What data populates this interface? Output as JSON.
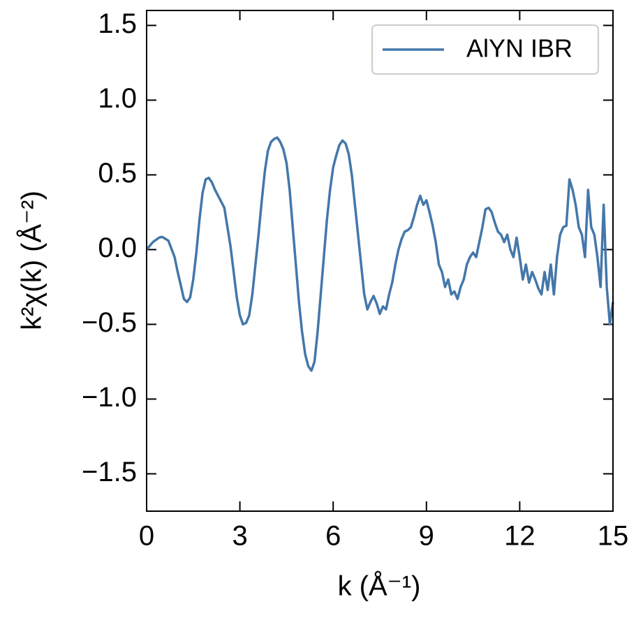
{
  "chart_data": {
    "type": "line",
    "xlabel": "k (Å⁻¹)",
    "ylabel": "k²χ(k) (Å⁻²)",
    "x": [
      0,
      0.2,
      0.4,
      0.5,
      0.7,
      0.9,
      1.0,
      1.2,
      1.3,
      1.4,
      1.5,
      1.6,
      1.7,
      1.8,
      1.9,
      2.0,
      2.1,
      2.2,
      2.4,
      2.5,
      2.6,
      2.7,
      2.8,
      2.9,
      3.0,
      3.1,
      3.2,
      3.3,
      3.4,
      3.5,
      3.6,
      3.7,
      3.8,
      3.9,
      4.0,
      4.1,
      4.2,
      4.3,
      4.4,
      4.5,
      4.6,
      4.7,
      4.8,
      4.9,
      5.0,
      5.1,
      5.2,
      5.3,
      5.4,
      5.5,
      5.6,
      5.7,
      5.8,
      5.9,
      6.0,
      6.1,
      6.2,
      6.3,
      6.4,
      6.5,
      6.6,
      6.7,
      6.8,
      6.9,
      7.0,
      7.1,
      7.2,
      7.3,
      7.4,
      7.5,
      7.6,
      7.7,
      7.8,
      7.9,
      8.0,
      8.1,
      8.2,
      8.3,
      8.4,
      8.5,
      8.6,
      8.7,
      8.8,
      8.9,
      9.0,
      9.1,
      9.2,
      9.3,
      9.4,
      9.5,
      9.6,
      9.7,
      9.8,
      9.9,
      10.0,
      10.1,
      10.2,
      10.3,
      10.4,
      10.5,
      10.6,
      10.7,
      10.8,
      10.9,
      11.0,
      11.1,
      11.2,
      11.3,
      11.4,
      11.5,
      11.6,
      11.7,
      11.8,
      11.9,
      12.0,
      12.1,
      12.2,
      12.3,
      12.4,
      12.5,
      12.6,
      12.7,
      12.8,
      12.9,
      13.0,
      13.1,
      13.2,
      13.3,
      13.4,
      13.5,
      13.6,
      13.7,
      13.8,
      13.9,
      14.0,
      14.1,
      14.2,
      14.3,
      14.4,
      14.5,
      14.6,
      14.7,
      14.8,
      14.9,
      15.0
    ],
    "series": [
      {
        "name": "AlYN IBR",
        "color": "#4477aa",
        "values": [
          0,
          0.05,
          0.08,
          0.085,
          0.06,
          -0.05,
          -0.15,
          -0.33,
          -0.35,
          -0.32,
          -0.2,
          -0.02,
          0.2,
          0.38,
          0.47,
          0.48,
          0.45,
          0.4,
          0.32,
          0.28,
          0.15,
          0.02,
          -0.15,
          -0.32,
          -0.44,
          -0.5,
          -0.49,
          -0.44,
          -0.3,
          -0.1,
          0.1,
          0.32,
          0.52,
          0.66,
          0.72,
          0.74,
          0.75,
          0.72,
          0.67,
          0.58,
          0.4,
          0.15,
          -0.1,
          -0.35,
          -0.55,
          -0.7,
          -0.78,
          -0.81,
          -0.75,
          -0.55,
          -0.3,
          -0.05,
          0.2,
          0.4,
          0.55,
          0.63,
          0.7,
          0.73,
          0.71,
          0.64,
          0.5,
          0.3,
          0.1,
          -0.1,
          -0.3,
          -0.4,
          -0.35,
          -0.31,
          -0.36,
          -0.43,
          -0.38,
          -0.4,
          -0.3,
          -0.22,
          -0.1,
          0.0,
          0.07,
          0.12,
          0.13,
          0.15,
          0.22,
          0.3,
          0.36,
          0.3,
          0.33,
          0.25,
          0.16,
          0.05,
          -0.1,
          -0.15,
          -0.25,
          -0.2,
          -0.3,
          -0.28,
          -0.33,
          -0.25,
          -0.2,
          -0.1,
          -0.05,
          -0.02,
          -0.05,
          0.05,
          0.15,
          0.27,
          0.28,
          0.25,
          0.18,
          0.12,
          0.1,
          0.05,
          0.1,
          0.0,
          -0.05,
          0.08,
          -0.05,
          -0.2,
          -0.1,
          -0.22,
          -0.15,
          -0.2,
          -0.26,
          -0.3,
          -0.15,
          -0.27,
          -0.1,
          -0.3,
          -0.05,
          0.1,
          0.15,
          0.16,
          0.47,
          0.4,
          0.3,
          0.15,
          0.1,
          -0.05,
          0.4,
          0.15,
          0.1,
          -0.05,
          -0.25,
          0.3,
          -0.25,
          -0.5,
          -0.35
        ]
      }
    ],
    "xlim": [
      0,
      15
    ],
    "xticks": [
      0,
      3,
      6,
      9,
      12,
      15
    ],
    "ylim": [
      -1.75,
      1.6
    ],
    "yticks": [
      {
        "value": -1.5,
        "label": "−1.5"
      },
      {
        "value": -1.0,
        "label": "−1.0"
      },
      {
        "value": -0.5,
        "label": "−0.5"
      },
      {
        "value": 0,
        "label": "0.0"
      },
      0.5,
      {
        "value": 1.0,
        "label": "1.0"
      },
      1.5
    ],
    "legend": "upper right"
  }
}
